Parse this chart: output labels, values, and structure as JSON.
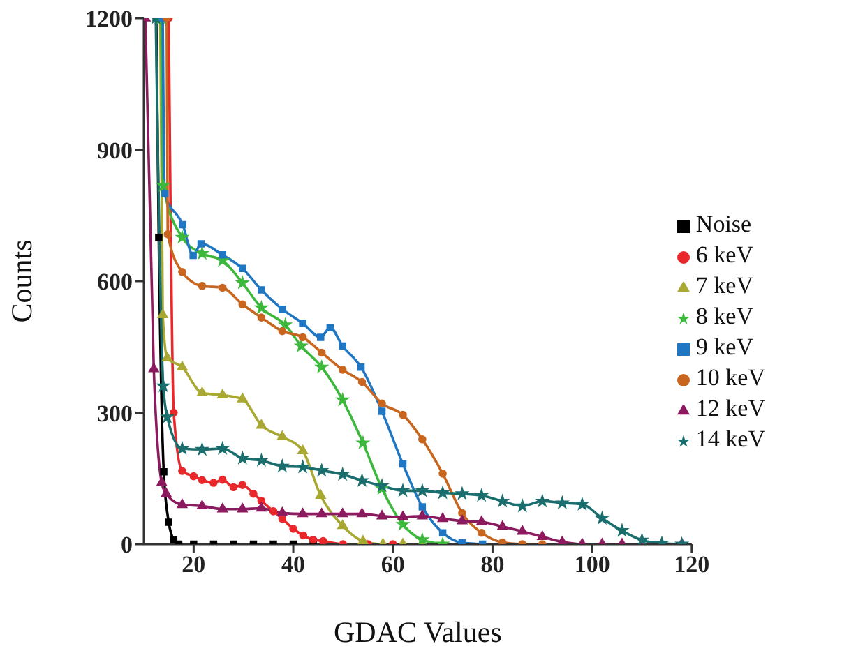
{
  "chart_data": {
    "type": "line",
    "xlabel": "GDAC Values",
    "ylabel": "Counts",
    "xlim": [
      10,
      120
    ],
    "xticks": [
      20,
      40,
      60,
      80,
      100,
      120
    ],
    "ylim": [
      0,
      1200
    ],
    "yticks": [
      0,
      300,
      600,
      900,
      1200
    ],
    "legend": "right",
    "line_style": "solid",
    "series": [
      {
        "name": "Noise",
        "color": "#000000",
        "marker": "square",
        "x": [
          12.5,
          13,
          14,
          15,
          16,
          17,
          20,
          24,
          28,
          32,
          36,
          40,
          44
        ],
        "values": [
          1200,
          700,
          165,
          50,
          10,
          0,
          0,
          0,
          0,
          0,
          0,
          0,
          0
        ]
      },
      {
        "name": "6 keV",
        "color": "#e8282b",
        "marker": "circle",
        "x": [
          15,
          16,
          17.7,
          20,
          21.7,
          24,
          25.8,
          28,
          29.8,
          32,
          33.6,
          36,
          37.8,
          40,
          42,
          44,
          46,
          50,
          55,
          60
        ],
        "values": [
          1200,
          300,
          167,
          155,
          146,
          140,
          147,
          130,
          135,
          115,
          99,
          75,
          58,
          35,
          20,
          10,
          7,
          0,
          0,
          0
        ]
      },
      {
        "name": "7 keV",
        "color": "#a8a832",
        "marker": "triangle",
        "x": [
          13.3,
          13.8,
          14.7,
          17.7,
          21.7,
          25.8,
          29.8,
          33.6,
          37.8,
          41.9,
          45.5,
          49.9,
          54,
          58,
          62,
          66
        ],
        "values": [
          1200,
          523,
          425,
          404,
          345,
          340,
          331,
          271,
          245,
          213,
          111,
          42,
          7,
          0,
          0,
          0
        ]
      },
      {
        "name": "8 keV",
        "color": "#3cb83c",
        "marker": "star",
        "x": [
          13.5,
          13.9,
          17.7,
          21.7,
          25.8,
          29.8,
          33.6,
          38.4,
          41.6,
          45.7,
          49.9,
          54,
          57.8,
          62,
          65.9,
          70
        ],
        "values": [
          1200,
          818,
          700,
          663,
          647,
          596,
          539,
          500,
          452,
          404,
          329,
          231,
          127,
          45,
          10,
          0
        ]
      },
      {
        "name": "9 keV",
        "color": "#1f77c4",
        "marker": "square",
        "x": [
          13.8,
          14.2,
          17.8,
          19.9,
          21.5,
          25.8,
          29.8,
          33.6,
          37.8,
          41.9,
          45.5,
          47.4,
          49.9,
          53.6,
          57.8,
          62,
          65.9,
          70,
          73.9,
          78
        ],
        "values": [
          1200,
          800,
          729,
          659,
          685,
          660,
          629,
          580,
          536,
          504,
          472,
          494,
          452,
          404,
          303,
          183,
          85,
          26,
          3,
          0
        ]
      },
      {
        "name": "10 keV",
        "color": "#c8651e",
        "marker": "circle",
        "x": [
          14.6,
          14.8,
          17.7,
          21.7,
          25.8,
          29.8,
          33.6,
          37.8,
          41.9,
          45.7,
          49.9,
          53.8,
          57.8,
          62,
          65.9,
          70,
          73.9,
          77.8,
          82,
          86,
          90
        ],
        "values": [
          1200,
          707,
          621,
          589,
          585,
          547,
          517,
          486,
          472,
          437,
          398,
          370,
          321,
          295,
          239,
          161,
          71,
          26,
          4,
          0,
          0
        ]
      },
      {
        "name": "12 keV",
        "color": "#8b1a5e",
        "marker": "triangle",
        "x": [
          10.3,
          12,
          13.6,
          14.5,
          17.7,
          21.7,
          25.8,
          29.8,
          33.6,
          37.8,
          41.9,
          45.7,
          49.9,
          53.8,
          57.8,
          62,
          65.9,
          70,
          73.9,
          77.8,
          82,
          86,
          90,
          94,
          98,
          102,
          106,
          110,
          114,
          118
        ],
        "values": [
          1200,
          400,
          140,
          115,
          90,
          87,
          80,
          80,
          82,
          71,
          69,
          69,
          69,
          69,
          64,
          62,
          64,
          58,
          53,
          51,
          40,
          29,
          17,
          5,
          0,
          0,
          0,
          0,
          0,
          0
        ]
      },
      {
        "name": "14 keV",
        "color": "#1a6e6e",
        "marker": "star",
        "x": [
          12.4,
          13.9,
          14.7,
          17.7,
          21.7,
          25.8,
          29.8,
          33.6,
          37.8,
          41.9,
          45.7,
          49.9,
          53.8,
          57.8,
          62,
          65.9,
          70,
          73.9,
          77.8,
          82,
          86,
          90,
          94,
          98,
          102,
          106,
          110,
          114,
          118
        ],
        "values": [
          1200,
          361,
          290,
          218,
          216,
          218,
          196,
          191,
          178,
          176,
          168,
          159,
          145,
          133,
          122,
          122,
          117,
          115,
          111,
          98,
          87,
          98,
          94,
          91,
          59,
          31,
          9,
          2,
          0
        ]
      }
    ]
  }
}
